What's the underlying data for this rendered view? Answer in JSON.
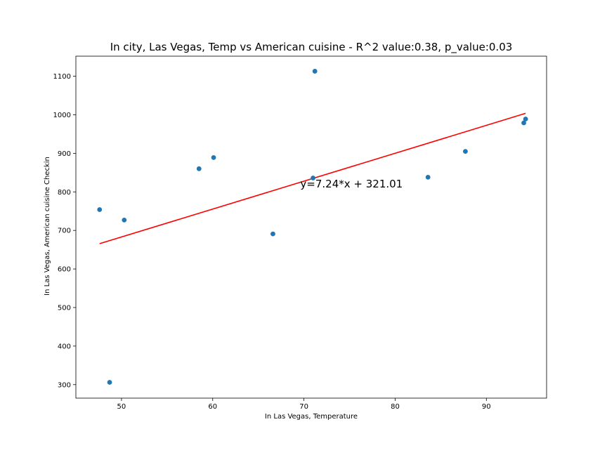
{
  "chart_data": {
    "type": "scatter",
    "title": "In city, Las Vegas, Temp vs American cuisine - R^2 value:0.38, p_value:0.03",
    "xlabel": "In Las Vegas,  Temperature",
    "ylabel": "In Las Vegas,  American cuisine Checkin",
    "xlim": [
      45,
      96.6
    ],
    "ylim": [
      265,
      1152
    ],
    "xticks": [
      50,
      60,
      70,
      80,
      90
    ],
    "yticks": [
      300,
      400,
      500,
      600,
      700,
      800,
      900,
      1000,
      1100
    ],
    "grid": false,
    "legend": "none",
    "points": [
      {
        "x": 47.6,
        "y": 754
      },
      {
        "x": 48.7,
        "y": 306
      },
      {
        "x": 50.3,
        "y": 727
      },
      {
        "x": 58.5,
        "y": 860
      },
      {
        "x": 60.1,
        "y": 889
      },
      {
        "x": 66.6,
        "y": 691
      },
      {
        "x": 71.0,
        "y": 836
      },
      {
        "x": 71.2,
        "y": 1113
      },
      {
        "x": 83.6,
        "y": 838
      },
      {
        "x": 87.7,
        "y": 905
      },
      {
        "x": 94.1,
        "y": 979
      },
      {
        "x": 94.3,
        "y": 989
      }
    ],
    "regression": {
      "slope": 7.24,
      "intercept": 321.01,
      "x_start": 47.6,
      "x_end": 94.3,
      "equation_label": "y=7.24*x + 321.01",
      "label_x": 69.6,
      "label_y": 811
    },
    "colors": {
      "points": "#1f77b4",
      "regression_line": "#ff0000"
    }
  }
}
